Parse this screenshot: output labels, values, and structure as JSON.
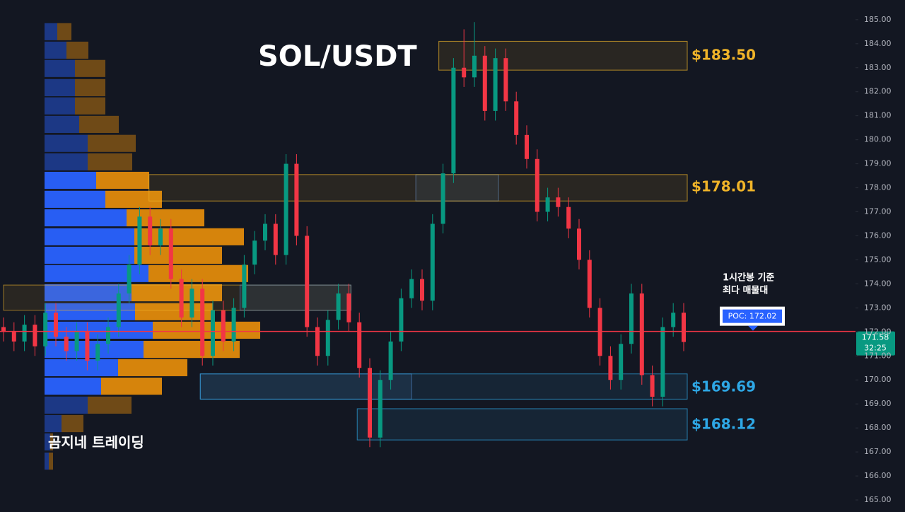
{
  "chart_data": {
    "type": "candlestick",
    "title": "SOL/USDT",
    "watermark": "곰지네 트레이딩",
    "annotation": [
      "1시간봉 기준",
      "최다 매물대"
    ],
    "ylim": [
      164.5,
      185.82
    ],
    "yticks": [
      {
        "value": 165,
        "label": "165.00"
      },
      {
        "value": 166,
        "label": "166.00"
      },
      {
        "value": 167,
        "label": "167.00"
      },
      {
        "value": 168,
        "label": "168.00"
      },
      {
        "value": 169,
        "label": "169.00"
      },
      {
        "value": 170,
        "label": "170.00"
      },
      {
        "value": 171,
        "label": "171.00"
      },
      {
        "value": 172,
        "label": "172.00"
      },
      {
        "value": 173,
        "label": "173.00"
      },
      {
        "value": 174,
        "label": "174.00"
      },
      {
        "value": 175,
        "label": "175.00"
      },
      {
        "value": 176,
        "label": "176.00"
      },
      {
        "value": 177,
        "label": "177.00"
      },
      {
        "value": 178,
        "label": "178.00"
      },
      {
        "value": 179,
        "label": "179.00"
      },
      {
        "value": 180,
        "label": "180.00"
      },
      {
        "value": 181,
        "label": "181.00"
      },
      {
        "value": 182,
        "label": "182.00"
      },
      {
        "value": 183,
        "label": "183.00"
      },
      {
        "value": 184,
        "label": "184.00"
      },
      {
        "value": 185,
        "label": "185.00"
      }
    ],
    "up_color": "#089981",
    "down_color": "#f23645",
    "ohlc": [
      [
        172.2,
        172.6,
        171.6,
        172.0
      ],
      [
        172.0,
        172.4,
        171.2,
        171.6
      ],
      [
        171.6,
        172.7,
        171.2,
        172.3
      ],
      [
        172.3,
        172.7,
        171.0,
        171.4
      ],
      [
        171.4,
        173.2,
        171.0,
        172.8
      ],
      [
        172.8,
        173.2,
        171.4,
        171.8
      ],
      [
        171.8,
        172.2,
        170.8,
        171.2
      ],
      [
        171.2,
        172.4,
        170.8,
        172.0
      ],
      [
        172.0,
        172.4,
        170.4,
        170.8
      ],
      [
        170.8,
        171.9,
        170.4,
        171.5
      ],
      [
        171.5,
        172.6,
        171.1,
        172.2
      ],
      [
        172.2,
        174.0,
        171.8,
        173.6
      ],
      [
        173.6,
        175.2,
        173.2,
        174.8
      ],
      [
        174.8,
        177.2,
        174.4,
        176.8
      ],
      [
        176.8,
        177.2,
        175.2,
        175.6
      ],
      [
        175.6,
        176.7,
        175.2,
        176.3
      ],
      [
        176.3,
        176.7,
        173.8,
        174.2
      ],
      [
        174.2,
        174.6,
        172.2,
        172.6
      ],
      [
        172.6,
        174.2,
        172.2,
        173.8
      ],
      [
        173.8,
        174.2,
        170.6,
        171.0
      ],
      [
        171.0,
        173.3,
        170.6,
        172.9
      ],
      [
        172.9,
        173.3,
        171.2,
        171.6
      ],
      [
        171.6,
        173.4,
        171.2,
        173.0
      ],
      [
        173.0,
        175.2,
        172.6,
        174.8
      ],
      [
        174.8,
        176.2,
        174.4,
        175.8
      ],
      [
        175.8,
        176.9,
        175.4,
        176.5
      ],
      [
        176.5,
        176.9,
        174.8,
        175.2
      ],
      [
        175.2,
        179.4,
        174.8,
        179.0
      ],
      [
        179.0,
        179.4,
        175.6,
        176.0
      ],
      [
        176.0,
        176.4,
        171.8,
        172.2
      ],
      [
        172.2,
        172.6,
        170.6,
        171.0
      ],
      [
        171.0,
        172.9,
        170.6,
        172.5
      ],
      [
        172.5,
        174.0,
        172.1,
        173.6
      ],
      [
        173.6,
        174.0,
        172.0,
        172.4
      ],
      [
        172.4,
        172.8,
        170.1,
        170.5
      ],
      [
        170.5,
        170.9,
        167.2,
        167.6
      ],
      [
        167.6,
        170.4,
        167.2,
        170.0
      ],
      [
        170.0,
        172.0,
        169.6,
        171.6
      ],
      [
        171.6,
        173.8,
        171.2,
        173.4
      ],
      [
        173.4,
        174.6,
        173.0,
        174.2
      ],
      [
        174.2,
        174.6,
        172.9,
        173.3
      ],
      [
        173.3,
        176.9,
        172.9,
        176.5
      ],
      [
        176.5,
        179.0,
        176.1,
        178.6
      ],
      [
        178.6,
        183.4,
        178.2,
        183.0
      ],
      [
        183.0,
        184.6,
        182.2,
        182.6
      ],
      [
        182.6,
        184.9,
        182.2,
        183.5
      ],
      [
        183.5,
        183.9,
        180.8,
        181.2
      ],
      [
        181.2,
        183.8,
        180.8,
        183.4
      ],
      [
        183.4,
        183.8,
        181.2,
        181.6
      ],
      [
        181.6,
        182.0,
        179.8,
        180.2
      ],
      [
        180.2,
        180.6,
        178.8,
        179.2
      ],
      [
        179.2,
        179.6,
        176.6,
        177.0
      ],
      [
        177.0,
        178.0,
        176.6,
        177.6
      ],
      [
        177.6,
        178.0,
        176.8,
        177.2
      ],
      [
        177.2,
        177.6,
        175.9,
        176.3
      ],
      [
        176.3,
        176.7,
        174.6,
        175.0
      ],
      [
        175.0,
        175.4,
        172.6,
        173.0
      ],
      [
        173.0,
        173.4,
        170.6,
        171.0
      ],
      [
        171.0,
        171.4,
        169.6,
        170.0
      ],
      [
        170.0,
        171.9,
        169.6,
        171.5
      ],
      [
        171.5,
        174.0,
        171.1,
        173.6
      ],
      [
        173.6,
        174.0,
        169.8,
        170.2
      ],
      [
        170.2,
        170.6,
        168.9,
        169.3
      ],
      [
        169.3,
        172.6,
        168.9,
        172.2
      ],
      [
        172.2,
        173.2,
        171.8,
        172.8
      ],
      [
        172.8,
        173.2,
        171.2,
        171.58
      ]
    ],
    "volume_profile": {
      "prices": [
        184.5,
        183.73,
        182.97,
        182.17,
        181.41,
        180.64,
        179.85,
        179.08,
        178.31,
        177.52,
        176.75,
        175.96,
        175.19,
        174.43,
        173.63,
        172.84,
        172.07,
        171.27,
        170.51,
        169.74,
        168.95,
        168.18,
        167.42,
        166.62
      ],
      "buy": [
        18,
        31,
        43,
        43,
        43,
        49,
        61,
        61,
        73,
        86,
        116,
        127,
        127,
        147,
        123,
        128,
        153,
        140,
        104,
        80,
        61,
        24,
        8,
        6
      ],
      "sell": [
        20,
        31,
        43,
        43,
        43,
        56,
        68,
        63,
        75,
        80,
        110,
        155,
        124,
        141,
        128,
        110,
        152,
        136,
        98,
        86,
        62,
        31,
        4,
        6
      ],
      "buy_color": "#2962ff",
      "sell_color": "#e08a0c",
      "value_area": [
        169.3,
        178.7
      ]
    },
    "levels": [
      {
        "value": 183.5,
        "label": "$183.50",
        "low": 182.9,
        "high": 184.1,
        "start": 41.6,
        "color": "#f0b429"
      },
      {
        "value": 178.01,
        "label": "$178.01",
        "low": 177.45,
        "high": 178.55,
        "start": 13.9,
        "color": "#f0b429"
      },
      {
        "value": 169.69,
        "label": "$169.69",
        "low": 169.2,
        "high": 170.25,
        "start": 18.8,
        "color": "#2ea8e6"
      },
      {
        "value": 168.12,
        "label": "$168.12",
        "low": 167.5,
        "high": 168.8,
        "start": 33.8,
        "color": "#2ea8e6"
      }
    ],
    "boxes": [
      {
        "low": 172.9,
        "high": 173.95,
        "start": 0,
        "end": 33.2,
        "color": "#f0b429"
      },
      {
        "low": 172.9,
        "high": 173.95,
        "start": 22.6,
        "end": 33.2,
        "color": "#5b8fd6"
      },
      {
        "low": 177.45,
        "high": 178.55,
        "start": 39.4,
        "end": 47.3,
        "color": "#5b8fd6"
      },
      {
        "low": 169.2,
        "high": 170.25,
        "start": 18.8,
        "end": 39,
        "color": "#5b8fd6"
      }
    ],
    "poc": {
      "value": 172.02,
      "label": "POC: 172.02",
      "color": "#f23645"
    },
    "last_price": 171.58,
    "countdown": "32:25"
  }
}
